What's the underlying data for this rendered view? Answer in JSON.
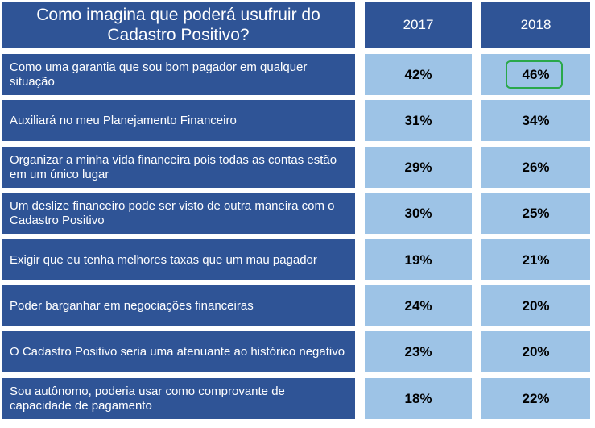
{
  "chart_data": {
    "type": "table",
    "title": "Como imagina que poderá usufruir do Cadastro Positivo?",
    "columns": [
      "2017",
      "2018"
    ],
    "rows": [
      {
        "label": "Como uma garantia que sou bom pagador em qualquer situação",
        "values": [
          "42%",
          "46%"
        ]
      },
      {
        "label": "Auxiliará no meu Planejamento Financeiro",
        "values": [
          "31%",
          "34%"
        ]
      },
      {
        "label": "Organizar a minha vida financeira pois todas as contas estão em um único lugar",
        "values": [
          "29%",
          "26%"
        ]
      },
      {
        "label": "Um deslize financeiro pode ser visto de outra maneira com o Cadastro Positivo",
        "values": [
          "30%",
          "25%"
        ]
      },
      {
        "label": "Exigir que eu tenha melhores taxas que um mau pagador",
        "values": [
          "19%",
          "21%"
        ]
      },
      {
        "label": "Poder barganhar em negociações financeiras",
        "values": [
          "24%",
          "20%"
        ]
      },
      {
        "label": "O Cadastro Positivo seria uma atenuante ao histórico negativo",
        "values": [
          "23%",
          "20%"
        ]
      },
      {
        "label": "Sou autônomo, poderia usar como comprovante de capacidade de pagamento",
        "values": [
          "18%",
          "22%"
        ]
      }
    ],
    "highlight": {
      "row": 0,
      "col": 1,
      "color": "#2aa84a"
    },
    "colors": {
      "header_bg": "#2f5496",
      "label_bg": "#2f5496",
      "value_bg": "#9dc3e6"
    }
  }
}
